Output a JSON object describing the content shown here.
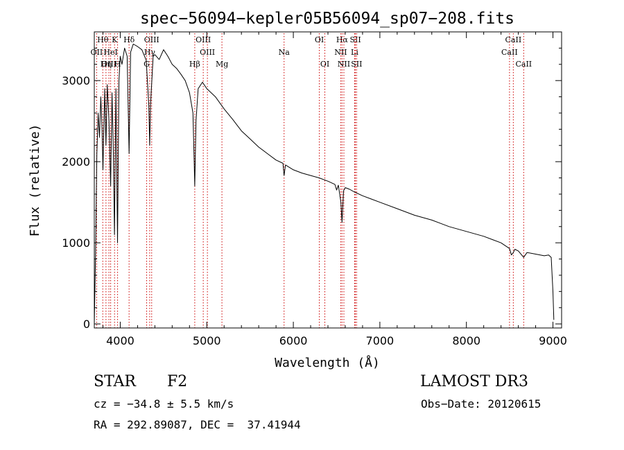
{
  "chart_data": {
    "type": "line",
    "title": "spec−56094−kepler05B56094_sp07−208.fits",
    "xlabel": "Wavelength (Å)",
    "ylabel": "Flux (relative)",
    "xlim": [
      3700,
      9100
    ],
    "ylim": [
      -50,
      3600
    ],
    "x_ticks": [
      4000,
      5000,
      6000,
      7000,
      8000,
      9000
    ],
    "y_ticks": [
      0,
      1000,
      2000,
      3000
    ],
    "series": [
      {
        "name": "spectrum",
        "x": [
          3700,
          3715,
          3730,
          3745,
          3760,
          3775,
          3790,
          3800,
          3820,
          3835,
          3850,
          3870,
          3889,
          3905,
          3920,
          3933,
          3950,
          3968,
          3985,
          4000,
          4020,
          4050,
          4080,
          4102,
          4120,
          4150,
          4200,
          4250,
          4300,
          4330,
          4340,
          4350,
          4380,
          4400,
          4450,
          4500,
          4550,
          4600,
          4650,
          4700,
          4750,
          4800,
          4840,
          4861,
          4875,
          4900,
          4950,
          5000,
          5100,
          5200,
          5300,
          5400,
          5500,
          5600,
          5700,
          5800,
          5880,
          5893,
          5910,
          6000,
          6100,
          6200,
          6300,
          6400,
          6480,
          6500,
          6520,
          6550,
          6563,
          6580,
          6600,
          6650,
          6700,
          6800,
          6900,
          7000,
          7200,
          7400,
          7600,
          7800,
          8000,
          8200,
          8300,
          8400,
          8498,
          8520,
          8542,
          8560,
          8600,
          8662,
          8700,
          8800,
          8900,
          8950,
          8980,
          9000,
          9010
        ],
        "y": [
          0,
          900,
          2100,
          2600,
          2300,
          2800,
          2400,
          1900,
          2900,
          2200,
          2950,
          2500,
          1700,
          2850,
          2100,
          1100,
          2900,
          1000,
          3000,
          3300,
          3200,
          3400,
          3300,
          2100,
          3350,
          3450,
          3420,
          3380,
          3250,
          2700,
          2200,
          2700,
          3300,
          3320,
          3260,
          3380,
          3300,
          3200,
          3150,
          3080,
          3000,
          2850,
          2600,
          1700,
          2500,
          2900,
          2980,
          2900,
          2800,
          2650,
          2520,
          2380,
          2280,
          2180,
          2100,
          2020,
          1980,
          1830,
          1960,
          1900,
          1860,
          1830,
          1800,
          1760,
          1720,
          1650,
          1710,
          1500,
          1250,
          1640,
          1680,
          1660,
          1630,
          1580,
          1540,
          1500,
          1420,
          1340,
          1280,
          1200,
          1140,
          1080,
          1040,
          1000,
          930,
          850,
          880,
          920,
          900,
          820,
          880,
          860,
          840,
          850,
          820,
          400,
          50
        ]
      }
    ],
    "line_markers": [
      {
        "label": "Hθ",
        "wavelength": 3798,
        "row": 1
      },
      {
        "label": "OII",
        "wavelength": 3727,
        "row": 2
      },
      {
        "label": "OIII",
        "wavelength": 3869,
        "row": 3
      },
      {
        "label": "K",
        "wavelength": 3934,
        "row": 1
      },
      {
        "label": "HeI",
        "wavelength": 3889,
        "row": 2
      },
      {
        "label": "Hη",
        "wavelength": 3835,
        "row": 3
      },
      {
        "label": "H",
        "wavelength": 3969,
        "row": 3
      },
      {
        "label": "Hδ",
        "wavelength": 4102,
        "row": 1
      },
      {
        "label": "OIII",
        "wavelength": 4363,
        "row": 1
      },
      {
        "label": "Hγ",
        "wavelength": 4340,
        "row": 2
      },
      {
        "label": "G",
        "wavelength": 4305,
        "row": 3
      },
      {
        "label": "OIII",
        "wavelength": 4959,
        "row": 1
      },
      {
        "label": "OIII",
        "wavelength": 5007,
        "row": 2
      },
      {
        "label": "Hβ",
        "wavelength": 4861,
        "row": 3
      },
      {
        "label": "Mg",
        "wavelength": 5175,
        "row": 3
      },
      {
        "label": "Na",
        "wavelength": 5893,
        "row": 2
      },
      {
        "label": "OI",
        "wavelength": 6300,
        "row": 1
      },
      {
        "label": "OI",
        "wavelength": 6364,
        "row": 3
      },
      {
        "label": "Hα",
        "wavelength": 6563,
        "row": 1
      },
      {
        "label": "NII",
        "wavelength": 6548,
        "row": 2
      },
      {
        "label": "NII",
        "wavelength": 6584,
        "row": 3
      },
      {
        "label": "SII",
        "wavelength": 6717,
        "row": 1
      },
      {
        "label": "Li",
        "wavelength": 6708,
        "row": 2
      },
      {
        "label": "SII",
        "wavelength": 6731,
        "row": 3
      },
      {
        "label": "CaII",
        "wavelength": 8542,
        "row": 1
      },
      {
        "label": "CaII",
        "wavelength": 8498,
        "row": 2
      },
      {
        "label": "CaII",
        "wavelength": 8662,
        "row": 3
      }
    ]
  },
  "info": {
    "class": "STAR",
    "subclass": "F2",
    "survey": "LAMOST DR3",
    "cz": "cz = −34.8 ± 5.5 km/s",
    "obs_date": "Obs−Date: 20120615",
    "coords": "RA = 292.89087, DEC =  37.41944"
  },
  "colors": {
    "spectrum": "#000000",
    "line_marker": "#cc0000",
    "axis": "#000000"
  }
}
